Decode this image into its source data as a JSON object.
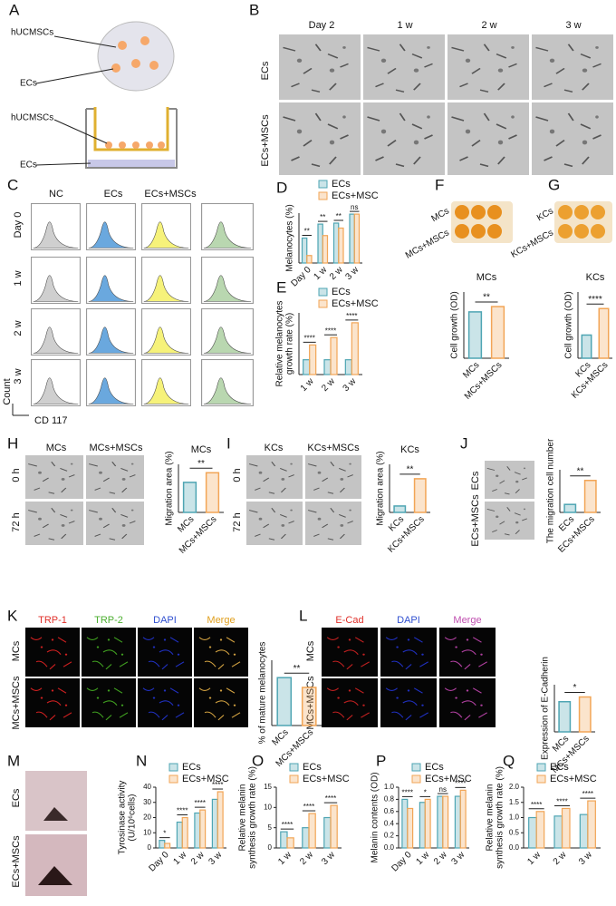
{
  "letters": [
    "A",
    "B",
    "C",
    "D",
    "E",
    "F",
    "G",
    "H",
    "I",
    "J",
    "K",
    "L",
    "M",
    "N",
    "O",
    "P",
    "Q"
  ],
  "panel_a": [
    "hUCMSCs",
    "ECs",
    "hUCMSCs",
    "ECs"
  ],
  "panel_b": {
    "columns": [
      "Day 2",
      "1 w",
      "2 w",
      "3 w"
    ],
    "rows": [
      "ECs",
      "ECs+MSCs"
    ]
  },
  "panel_c": {
    "columns": [
      "NC",
      "ECs",
      "ECs+MSCs"
    ],
    "rows": [
      "Day 0",
      "1 w",
      "2 w",
      "3 w"
    ],
    "y_axis": "Count",
    "x_axis": "CD 117"
  },
  "panel_f": [
    "MCs",
    "MCs+MSCs"
  ],
  "panel_g": [
    "KCs",
    "KCs+MSCs"
  ],
  "panel_h": {
    "columns": [
      "MCs",
      "MCs+MSCs"
    ],
    "rows": [
      "0 h",
      "72 h"
    ]
  },
  "panel_i": {
    "columns": [
      "KCs",
      "KCs+MSCs"
    ],
    "rows": [
      "0 h",
      "72 h"
    ]
  },
  "panel_j": [
    "ECs",
    "ECs+MSCs"
  ],
  "panel_k": {
    "columns": [
      "TRP-1",
      "TRP-2",
      "DAPI",
      "Merge"
    ],
    "rows": [
      "MCs",
      "MCs+MSCs"
    ]
  },
  "panel_l": {
    "columns": [
      "E-Cad",
      "DAPI",
      "Merge"
    ],
    "rows": [
      "MCs",
      "MCs+MSCs"
    ]
  },
  "panel_m": [
    "ECs",
    "ECs+MSCs"
  ],
  "chart_data": [
    {
      "type": "bar",
      "ylabel": [
        "Melanocytes (%)"
      ],
      "categories": [
        "Day 0",
        "1 w",
        "2 w",
        "3 w"
      ],
      "series": [
        {
          "name": "ECs",
          "color": "#4ea5b3",
          "values": [
            50,
            78,
            80,
            98
          ]
        },
        {
          "name": "ECs+MSC",
          "color": "#f2a556",
          "values": [
            15,
            55,
            70,
            98
          ]
        }
      ],
      "ylim": [
        0,
        100
      ],
      "significance": [
        "**",
        "**",
        "**",
        "ns"
      ],
      "legend": true
    },
    {
      "type": "bar",
      "ylabel": [
        "Relative melanocytes",
        "growth rate (%)"
      ],
      "categories": [
        "1 w",
        "2 w",
        "3 w"
      ],
      "series": [
        {
          "name": "ECs",
          "color": "#4ea5b3",
          "values": [
            6,
            6,
            6
          ]
        },
        {
          "name": "ECs+MSC",
          "color": "#f2a556",
          "values": [
            12,
            15,
            21
          ]
        }
      ],
      "ylim": [
        0,
        25
      ],
      "significance": [
        "****",
        "****",
        "****"
      ],
      "legend": true
    },
    {
      "type": "bar",
      "title": "MCs",
      "ylabel": [
        "Cell growth (OD)"
      ],
      "categories": [
        "MCs",
        "MCs+MSCs"
      ],
      "values": [
        1.75,
        1.95
      ],
      "colors": [
        "#4ea5b3",
        "#f2a556"
      ],
      "ylim": [
        0,
        2.5
      ],
      "significance": [
        "**"
      ]
    },
    {
      "type": "bar",
      "title": "KCs",
      "ylabel": [
        "Cell growth (OD)"
      ],
      "categories": [
        "KCs",
        "KCs+MSCs"
      ],
      "values": [
        0.7,
        1.5
      ],
      "colors": [
        "#4ea5b3",
        "#f2a556"
      ],
      "ylim": [
        0,
        2
      ],
      "significance": [
        "****"
      ]
    },
    {
      "type": "bar",
      "title": "MCs",
      "ylabel": [
        "Migration area (%)"
      ],
      "categories": [
        "MCs",
        "MCs+MSCs"
      ],
      "values": [
        25,
        33
      ],
      "colors": [
        "#4ea5b3",
        "#f2a556"
      ],
      "ylim": [
        0,
        40
      ],
      "significance": [
        "**"
      ]
    },
    {
      "type": "bar",
      "title": "KCs",
      "ylabel": [
        "Migration area (%)"
      ],
      "categories": [
        "KCs",
        "KCs+MSCs"
      ],
      "values": [
        8,
        42
      ],
      "colors": [
        "#4ea5b3",
        "#f2a556"
      ],
      "ylim": [
        0,
        60
      ],
      "significance": [
        "**"
      ]
    },
    {
      "type": "bar",
      "ylabel": [
        "The migration cell number"
      ],
      "categories": [
        "ECs",
        "ECs+MSCs"
      ],
      "values": [
        15,
        60
      ],
      "colors": [
        "#4ea5b3",
        "#f2a556"
      ],
      "ylim": [
        0,
        80
      ],
      "significance": [
        "**"
      ]
    },
    {
      "type": "bar",
      "ylabel": [
        "% of mature melanocytes"
      ],
      "categories": [
        "MCs",
        "MCs+MSCs"
      ],
      "values": [
        2.2,
        1.75
      ],
      "colors": [
        "#4ea5b3",
        "#f2a556"
      ],
      "ylim": [
        0,
        3
      ],
      "significance": [
        "**"
      ]
    },
    {
      "type": "bar",
      "ylabel": [
        "Expression of E-Cadherin"
      ],
      "categories": [
        "MCs",
        "MCs+MSCs"
      ],
      "values": [
        32,
        37
      ],
      "colors": [
        "#4ea5b3",
        "#f2a556"
      ],
      "ylim": [
        0,
        50
      ],
      "significance": [
        "*"
      ]
    },
    {
      "type": "bar",
      "ylabel": [
        "Tyrosinase activity",
        "(U/10⁶cells)"
      ],
      "categories": [
        "Day 0",
        "1 w",
        "2 w",
        "3 w"
      ],
      "series": [
        {
          "name": "ECs",
          "color": "#4ea5b3",
          "values": [
            5,
            17,
            23,
            32
          ]
        },
        {
          "name": "ECs+MSC",
          "color": "#f2a556",
          "values": [
            3,
            20,
            25,
            37
          ]
        }
      ],
      "ylim": [
        0,
        40
      ],
      "yticks": [
        0,
        10,
        20,
        30,
        40
      ],
      "significance": [
        "*",
        "****",
        "****",
        "****"
      ],
      "legend": true
    },
    {
      "type": "bar",
      "ylabel": [
        "Relative melanin",
        "synthesis growth rate (%)"
      ],
      "categories": [
        "1 w",
        "2 w",
        "3 w"
      ],
      "series": [
        {
          "name": "ECs",
          "color": "#4ea5b3",
          "values": [
            4,
            5,
            7.5
          ]
        },
        {
          "name": "ECs+MSC",
          "color": "#f2a556",
          "values": [
            2.5,
            8.5,
            10.5
          ]
        }
      ],
      "ylim": [
        0,
        15
      ],
      "yticks": [
        0,
        5,
        10,
        15
      ],
      "significance": [
        "****",
        "****",
        "****"
      ],
      "legend": true
    },
    {
      "type": "bar",
      "ylabel": [
        "Melanin contents (OD)"
      ],
      "categories": [
        "Day 0",
        "1 w",
        "2 w",
        "3 w"
      ],
      "series": [
        {
          "name": "ECs",
          "color": "#4ea5b3",
          "values": [
            0.8,
            0.75,
            0.85,
            0.85
          ]
        },
        {
          "name": "ECs+MSC",
          "color": "#f2a556",
          "values": [
            0.65,
            0.8,
            0.85,
            0.95
          ]
        }
      ],
      "ylim": [
        0,
        1
      ],
      "yticks": [
        {
          "value": 0,
          "label": "0.0"
        },
        0.2,
        0.4,
        0.6,
        0.8,
        {
          "value": 1,
          "label": "1.0"
        }
      ],
      "significance": [
        "****",
        "*",
        "ns",
        "****"
      ],
      "legend": true
    },
    {
      "type": "bar",
      "ylabel": [
        "Relative melanin",
        "synthesis growth rate (%)"
      ],
      "categories": [
        "1 w",
        "2 w",
        "3 w"
      ],
      "series": [
        {
          "name": "ECs",
          "color": "#4ea5b3",
          "values": [
            1.0,
            1.05,
            1.1
          ]
        },
        {
          "name": "ECs+MSC",
          "color": "#f2a556",
          "values": [
            1.2,
            1.3,
            1.55
          ]
        }
      ],
      "ylim": [
        0,
        2
      ],
      "yticks": [
        {
          "value": 0,
          "label": "0.0"
        },
        0.5,
        {
          "value": 1,
          "label": "1.0"
        },
        1.5,
        {
          "value": 2,
          "label": "2.0"
        }
      ],
      "significance": [
        "****",
        "****",
        "****"
      ],
      "legend": true
    }
  ]
}
